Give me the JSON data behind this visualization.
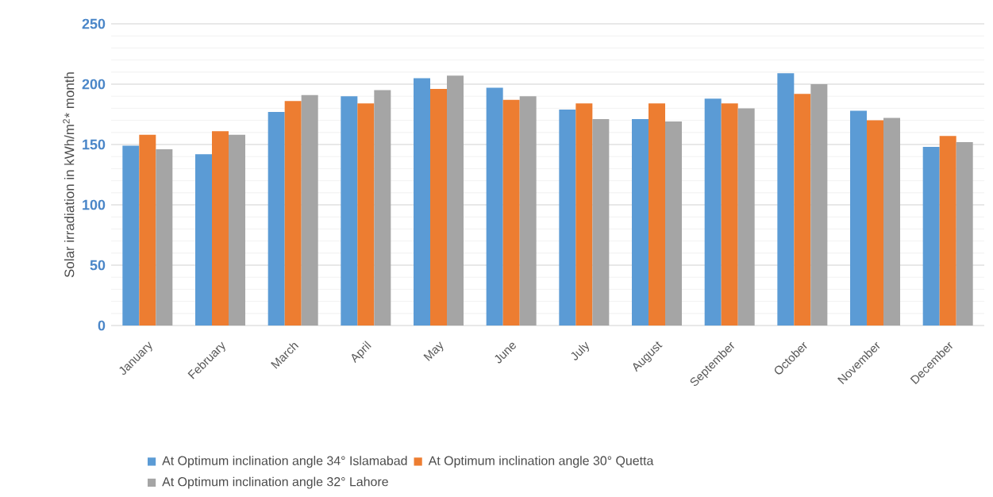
{
  "chart_data": {
    "type": "bar",
    "ylabel": "Solar irradiation in kWh/m$^{2}$* month",
    "categories": [
      "January",
      "February",
      "March",
      "April",
      "May",
      "June",
      "July",
      "August",
      "September",
      "October",
      "November",
      "December"
    ],
    "series": [
      {
        "name": "At Optimum inclination angle 34° Islamabad",
        "color": "#5b9bd5",
        "values": [
          149,
          142,
          177,
          190,
          205,
          197,
          179,
          171,
          188,
          209,
          178,
          148
        ]
      },
      {
        "name": "At Optimum inclination angle 30° Quetta",
        "color": "#ed7d31",
        "values": [
          158,
          161,
          186,
          184,
          196,
          187,
          184,
          184,
          184,
          192,
          170,
          157
        ]
      },
      {
        "name": "At Optimum inclination angle 32° Lahore",
        "color": "#a5a5a5",
        "values": [
          146,
          158,
          191,
          195,
          207,
          190,
          171,
          169,
          180,
          200,
          172,
          152
        ]
      }
    ],
    "ylim": [
      0,
      250
    ],
    "yticks": [
      0,
      50,
      100,
      150,
      200,
      250
    ],
    "grid": "y",
    "legend": "bottom"
  }
}
